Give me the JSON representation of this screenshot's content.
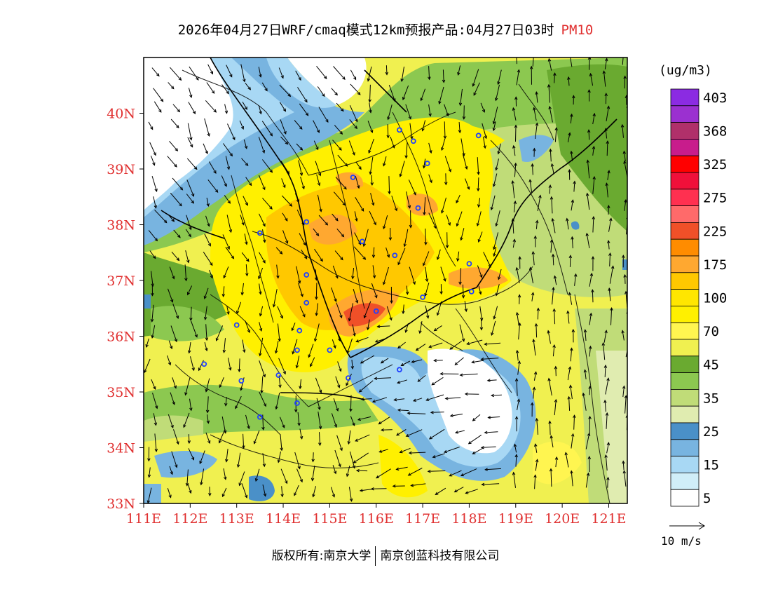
{
  "title": {
    "main": "2026年04月27日WRF/cmaq模式12km预报产品:04月27日03时",
    "pollutant": "PM10"
  },
  "map": {
    "lat_labels": [
      "40N",
      "39N",
      "38N",
      "37N",
      "36N",
      "35N",
      "34N",
      "33N"
    ],
    "lon_labels": [
      "111E",
      "112E",
      "113E",
      "114E",
      "115E",
      "116E",
      "117E",
      "118E",
      "119E",
      "120E",
      "121E"
    ],
    "lat_range": [
      33,
      41
    ],
    "lon_range": [
      111,
      121.4
    ],
    "label_color": "#e03030"
  },
  "legend": {
    "unit": "(ug/m3)",
    "levels": [
      {
        "label": "403",
        "color": "#8b2be2"
      },
      {
        "label": "",
        "color": "#9b30d0"
      },
      {
        "label": "368",
        "color": "#b0306a"
      },
      {
        "label": "",
        "color": "#c81c8c"
      },
      {
        "label": "325",
        "color": "#ff0000"
      },
      {
        "label": "",
        "color": "#f0103a"
      },
      {
        "label": "275",
        "color": "#ff3050"
      },
      {
        "label": "",
        "color": "#ff6a6a"
      },
      {
        "label": "225",
        "color": "#f05028"
      },
      {
        "label": "",
        "color": "#ff8c00"
      },
      {
        "label": "175",
        "color": "#ffa830"
      },
      {
        "label": "",
        "color": "#ffc800"
      },
      {
        "label": "100",
        "color": "#ffe600"
      },
      {
        "label": "",
        "color": "#fff000"
      },
      {
        "label": "70",
        "color": "#fff550"
      },
      {
        "label": "",
        "color": "#f0f050"
      },
      {
        "label": "45",
        "color": "#6aaa30"
      },
      {
        "label": "",
        "color": "#8cc850"
      },
      {
        "label": "35",
        "color": "#c0dc78"
      },
      {
        "label": "",
        "color": "#e0ecb0"
      },
      {
        "label": "25",
        "color": "#4a90c8"
      },
      {
        "label": "",
        "color": "#78b4e0"
      },
      {
        "label": "15",
        "color": "#a8d8f4"
      },
      {
        "label": "",
        "color": "#d0eef8"
      },
      {
        "label": "5",
        "color": "#ffffff"
      }
    ]
  },
  "wind_reference": {
    "label": "10 m/s"
  },
  "footer": {
    "copyright": "版权所有:南京大学",
    "company": "南京创蓝科技有限公司"
  },
  "stations": [
    [
      116.5,
      39.7
    ],
    [
      116.8,
      39.5
    ],
    [
      117.1,
      39.1
    ],
    [
      118.2,
      39.6
    ],
    [
      115.5,
      38.85
    ],
    [
      116.9,
      38.3
    ],
    [
      114.5,
      38.05
    ],
    [
      113.5,
      37.85
    ],
    [
      115.7,
      37.7
    ],
    [
      116.4,
      37.45
    ],
    [
      114.5,
      37.1
    ],
    [
      118.0,
      37.3
    ],
    [
      117.0,
      36.7
    ],
    [
      118.05,
      36.8
    ],
    [
      114.5,
      36.6
    ],
    [
      116.0,
      36.45
    ],
    [
      113.0,
      36.2
    ],
    [
      114.35,
      36.1
    ],
    [
      114.3,
      35.75
    ],
    [
      115.0,
      35.75
    ],
    [
      112.3,
      35.5
    ],
    [
      116.5,
      35.4
    ],
    [
      113.1,
      35.2
    ],
    [
      113.9,
      35.3
    ],
    [
      115.4,
      35.25
    ],
    [
      114.3,
      34.8
    ],
    [
      113.5,
      34.55
    ]
  ]
}
